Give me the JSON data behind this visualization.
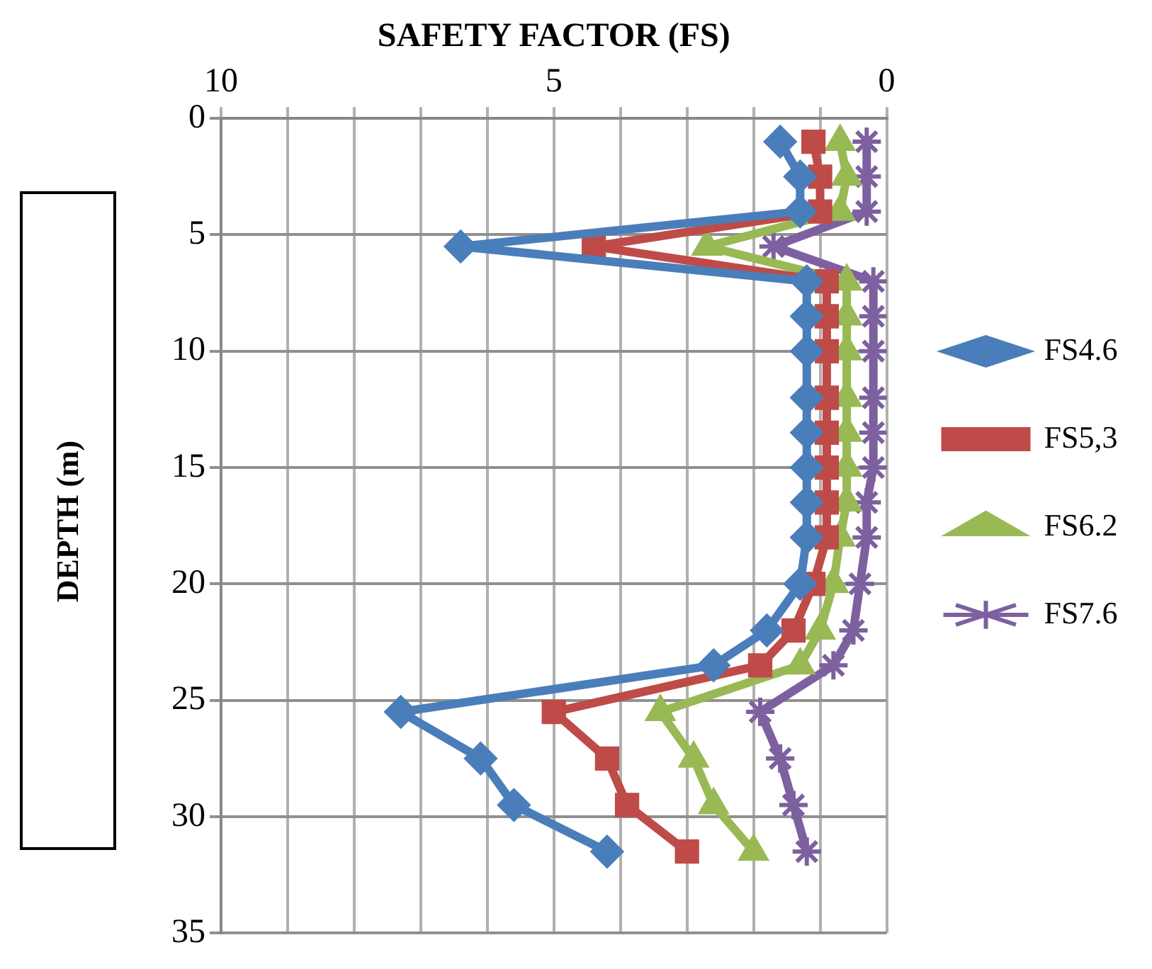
{
  "chart_data": {
    "type": "line",
    "xlabel": "SAFETY FACTOR (FS)",
    "ylabel": "DEPTH (m)",
    "series": [
      {
        "name": "FS4.6",
        "color": "#4a7ebb",
        "marker": "diamond",
        "x": [
          1.6,
          1.3,
          1.3,
          6.4,
          1.2,
          1.2,
          1.2,
          1.2,
          1.2,
          1.2,
          1.2,
          1.2,
          1.3,
          1.8,
          2.6,
          7.3,
          6.1,
          5.6,
          4.2
        ],
        "values": [
          1,
          2.5,
          4,
          5.5,
          7,
          8.5,
          10,
          12,
          13.5,
          15,
          16.5,
          18,
          20,
          22,
          23.5,
          25.5,
          27.5,
          29.5,
          31.5
        ]
      },
      {
        "name": "FS5,3",
        "color": "#be4b48",
        "marker": "square",
        "x": [
          1.1,
          1.0,
          1.0,
          4.4,
          0.9,
          0.9,
          0.9,
          0.9,
          0.9,
          0.9,
          0.9,
          0.9,
          1.1,
          1.4,
          1.9,
          5.0,
          4.2,
          3.9,
          3.0
        ],
        "values": [
          1,
          2.5,
          4,
          5.5,
          7,
          8.5,
          10,
          12,
          13.5,
          15,
          16.5,
          18,
          20,
          22,
          23.5,
          25.5,
          27.5,
          29.5,
          31.5
        ]
      },
      {
        "name": "FS6.2",
        "color": "#98b954",
        "marker": "triangle",
        "x": [
          0.7,
          0.6,
          0.7,
          2.7,
          0.6,
          0.6,
          0.6,
          0.6,
          0.6,
          0.6,
          0.6,
          0.7,
          0.8,
          1.0,
          1.3,
          3.4,
          2.9,
          2.6,
          2.0
        ],
        "values": [
          1,
          2.5,
          4,
          5.5,
          7,
          8.5,
          10,
          12,
          13.5,
          15,
          16.5,
          18,
          20,
          22,
          23.5,
          25.5,
          27.5,
          29.5,
          31.5
        ]
      },
      {
        "name": "FS7.6",
        "color": "#7d60a0",
        "marker": "cross",
        "x": [
          0.3,
          0.3,
          0.3,
          1.7,
          0.2,
          0.2,
          0.2,
          0.2,
          0.2,
          0.2,
          0.3,
          0.3,
          0.4,
          0.5,
          0.8,
          1.9,
          1.6,
          1.4,
          1.2
        ],
        "values": [
          1,
          2.5,
          4,
          5.5,
          7,
          8.5,
          10,
          12,
          13.5,
          15,
          16.5,
          18,
          20,
          22,
          23.5,
          25.5,
          27.5,
          29.5,
          31.5
        ]
      }
    ],
    "xlim": [
      10,
      0
    ],
    "xticks": [
      10,
      {
        "value": 9,
        "label": null
      },
      {
        "value": 8,
        "label": null
      },
      {
        "value": 7,
        "label": null
      },
      {
        "value": 6,
        "label": null
      },
      5,
      {
        "value": 4,
        "label": null
      },
      {
        "value": 3,
        "label": null
      },
      {
        "value": 2,
        "label": null
      },
      {
        "value": 1,
        "label": null
      },
      0
    ],
    "ylim": [
      35,
      0
    ],
    "yticks": [
      0,
      5,
      10,
      15,
      20,
      25,
      30,
      35
    ],
    "grid": true,
    "legend": "right",
    "line_style": "solid"
  }
}
